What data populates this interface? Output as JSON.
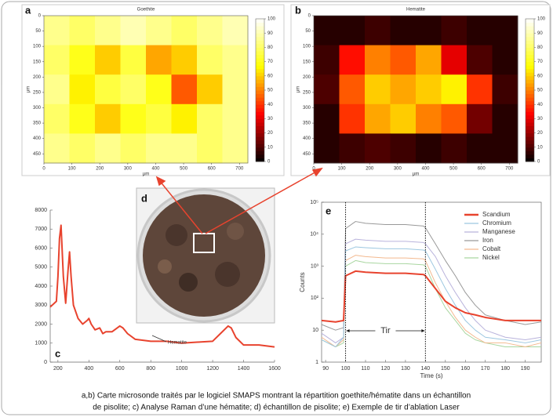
{
  "chart_data": [
    {
      "type": "heatmap",
      "label": "a",
      "title": "Goethite",
      "xlabel": "μm",
      "ylabel": "μm",
      "xlim": [
        0,
        730
      ],
      "xticks": [
        0,
        100,
        200,
        300,
        400,
        500,
        600,
        700
      ],
      "ylim": [
        0,
        480
      ],
      "yticks": [
        0,
        50,
        100,
        150,
        200,
        250,
        300,
        350,
        400,
        450
      ],
      "y_inverted": true,
      "clim": [
        0,
        100
      ],
      "cticks": [
        0,
        10,
        20,
        30,
        40,
        50,
        60,
        70,
        80,
        90,
        100
      ],
      "colormap": "hot",
      "values": [
        [
          85,
          80,
          85,
          90,
          85,
          80,
          85,
          90
        ],
        [
          80,
          70,
          60,
          75,
          55,
          60,
          80,
          85
        ],
        [
          85,
          65,
          75,
          80,
          70,
          45,
          60,
          85
        ],
        [
          80,
          70,
          60,
          70,
          75,
          65,
          80,
          85
        ],
        [
          85,
          80,
          85,
          80,
          85,
          85,
          80,
          85
        ]
      ]
    },
    {
      "type": "heatmap",
      "label": "b",
      "title": "Hematite",
      "xlabel": "μm",
      "ylabel": "μm",
      "xlim": [
        0,
        730
      ],
      "xticks": [
        0,
        100,
        200,
        300,
        400,
        500,
        600,
        700
      ],
      "ylim": [
        0,
        480
      ],
      "yticks": [
        0,
        50,
        100,
        150,
        200,
        250,
        300,
        350,
        400,
        450
      ],
      "y_inverted": true,
      "clim": [
        0,
        100
      ],
      "cticks": [
        0,
        10,
        20,
        30,
        40,
        50,
        60,
        70,
        80,
        90,
        100
      ],
      "colormap": "hot",
      "values": [
        [
          5,
          5,
          8,
          5,
          5,
          8,
          5,
          5
        ],
        [
          8,
          35,
          50,
          45,
          55,
          30,
          10,
          5
        ],
        [
          10,
          45,
          60,
          55,
          60,
          65,
          40,
          8
        ],
        [
          5,
          40,
          55,
          60,
          50,
          45,
          15,
          5
        ],
        [
          5,
          8,
          10,
          8,
          5,
          8,
          5,
          5
        ]
      ]
    },
    {
      "type": "line",
      "label": "c",
      "annotation": "Hematite",
      "color": "#e8432e",
      "xlim": [
        150,
        1600
      ],
      "xticks": [
        200,
        400,
        600,
        800,
        1000,
        1200,
        1400,
        1600
      ],
      "ylim": [
        0,
        8000
      ],
      "yticks": [
        0,
        1000,
        2000,
        3000,
        4000,
        5000,
        6000,
        7000,
        8000
      ],
      "x": [
        150,
        190,
        200,
        210,
        220,
        235,
        250,
        265,
        275,
        285,
        300,
        330,
        360,
        390,
        400,
        415,
        440,
        470,
        490,
        510,
        550,
        600,
        620,
        650,
        700,
        800,
        900,
        1000,
        1100,
        1200,
        1250,
        1300,
        1320,
        1350,
        1400,
        1500,
        1600
      ],
      "values": [
        2900,
        3200,
        4500,
        6500,
        7200,
        4500,
        3100,
        4800,
        5800,
        4500,
        3000,
        2300,
        2000,
        2200,
        2300,
        2000,
        1700,
        1800,
        1500,
        1600,
        1600,
        1900,
        1800,
        1500,
        1200,
        1100,
        1100,
        1000,
        1050,
        1100,
        1500,
        1900,
        1800,
        1300,
        900,
        900,
        800
      ]
    },
    {
      "type": "line",
      "label": "e",
      "xlabel": "Time (s)",
      "ylabel": "Counts",
      "log_y": true,
      "legend": "top-right",
      "annotation": "Tir",
      "markers": [
        100,
        140
      ],
      "xlim": [
        88,
        198
      ],
      "xticks": [
        90,
        100,
        110,
        120,
        130,
        140,
        150,
        160,
        170,
        180,
        190
      ],
      "ylim": [
        1,
        100000
      ],
      "yticks": [
        1,
        10,
        {
          "value": 100,
          "label": "10²"
        },
        {
          "value": 1000,
          "label": "10³"
        },
        {
          "value": 10000,
          "label": "10⁴"
        },
        {
          "value": 100000,
          "label": "10⁵"
        }
      ],
      "x": [
        88,
        95,
        99,
        100,
        105,
        110,
        120,
        130,
        139,
        140,
        145,
        150,
        155,
        160,
        165,
        170,
        180,
        190,
        198
      ],
      "series": [
        {
          "name": "Scandium",
          "color": "#e8432e",
          "values": [
            20,
            18,
            20,
            500,
            700,
            650,
            600,
            600,
            550,
            500,
            200,
            80,
            50,
            35,
            30,
            25,
            20,
            20,
            20
          ]
        },
        {
          "name": "Chromium",
          "color": "#9cc7e0",
          "values": [
            5,
            3,
            6,
            3000,
            4000,
            3800,
            3500,
            3500,
            3200,
            3000,
            800,
            200,
            60,
            20,
            10,
            6,
            5,
            4,
            5
          ]
        },
        {
          "name": "Manganese",
          "color": "#b9b3dc",
          "values": [
            8,
            4,
            6,
            5000,
            7000,
            6500,
            6000,
            6000,
            5500,
            5000,
            2000,
            500,
            150,
            50,
            20,
            10,
            6,
            5,
            6
          ]
        },
        {
          "name": "Iron",
          "color": "#999999",
          "values": [
            15,
            10,
            12,
            15000,
            25000,
            22000,
            20000,
            20000,
            18000,
            16000,
            5000,
            1500,
            500,
            150,
            60,
            30,
            20,
            15,
            18
          ]
        },
        {
          "name": "Cobalt",
          "color": "#f3b98f",
          "values": [
            6,
            3,
            5,
            1500,
            2200,
            2000,
            1800,
            1800,
            1700,
            1500,
            300,
            80,
            25,
            10,
            6,
            4,
            4,
            3,
            4
          ]
        },
        {
          "name": "Nickel",
          "color": "#a9d6a0",
          "values": [
            5,
            3,
            4,
            1000,
            1500,
            1300,
            1200,
            1200,
            1100,
            1000,
            200,
            50,
            20,
            8,
            5,
            4,
            3,
            3,
            3
          ]
        }
      ]
    }
  ],
  "photo": {
    "label": "d"
  },
  "caption": [
    "a,b) Carte microsonde traités par le logiciel SMAPS montrant la répartition goethite/hématite dans un échantillon",
    "de pisolite; c) Analyse Raman d’une hématite; d) échantillon de pisolite; e) Exemple de tir d’ablation Laser"
  ]
}
